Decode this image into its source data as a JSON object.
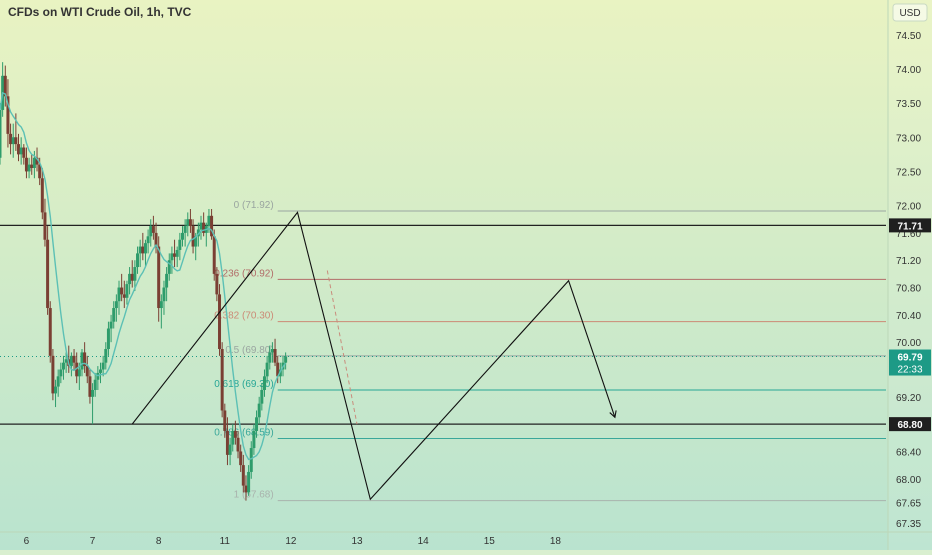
{
  "header": {
    "title": "CFDs on WTI Crude Oil, 1h, TVC",
    "currency": "USD"
  },
  "colors": {
    "bg_top": "#e9f3c2",
    "bg_bottom": "#b9e3cf",
    "up": "#2e9c6b",
    "down": "#7a3f33",
    "ma": "#5cc0b5",
    "fib_zero": "#9aa5a0",
    "fib_0236": "#b26c68",
    "fib_0382": "#cc8a76",
    "fib_0618": "#27a696",
    "fib_0786": "#3aa79a",
    "fib_1": "#a9b3ad",
    "hline": "#222222",
    "price_tag_bg": "#1d9a86",
    "axis_text": "#333333"
  },
  "chart_data": {
    "type": "candlestick",
    "title": "CFDs on WTI Crude Oil, 1h, TVC",
    "ylim": [
      67.25,
      74.6
    ],
    "xlim": [
      5.6,
      19.0
    ],
    "y_ticks": [
      "74.50",
      "74.00",
      "73.50",
      "73.00",
      "72.50",
      "72.00",
      "71.60",
      "71.20",
      "70.80",
      "70.40",
      "70.00",
      "69.20",
      "68.40",
      "68.00",
      "67.65",
      "67.35"
    ],
    "x_ticks": [
      {
        "label": "6",
        "x": 6
      },
      {
        "label": "7",
        "x": 7
      },
      {
        "label": "8",
        "x": 8
      },
      {
        "label": "11",
        "x": 9
      },
      {
        "label": "12",
        "x": 10
      },
      {
        "label": "13",
        "x": 11
      },
      {
        "label": "14",
        "x": 12
      },
      {
        "label": "15",
        "x": 13
      },
      {
        "label": "18",
        "x": 14
      }
    ],
    "last_price": {
      "value": 69.79,
      "label": "69.79",
      "countdown": "22:33"
    },
    "horizontal_levels": [
      {
        "value": 71.71,
        "label": "71.71"
      },
      {
        "value": 68.8,
        "label": "68.80"
      }
    ],
    "fib_levels": [
      {
        "ratio": "0",
        "value": 71.92,
        "label": "0 (71.92)",
        "color_key": "fib_zero"
      },
      {
        "ratio": "0.236",
        "value": 70.92,
        "label": "0.236 (70.92)",
        "color_key": "fib_0236"
      },
      {
        "ratio": "0.382",
        "value": 70.3,
        "label": "0.382 (70.30)",
        "color_key": "fib_0382"
      },
      {
        "ratio": "0.5",
        "value": 69.8,
        "label": "0.5 (69.80)",
        "color_key": "fib_zero"
      },
      {
        "ratio": "0.618",
        "value": 69.3,
        "label": "0.618 (69.30)",
        "color_key": "fib_0618"
      },
      {
        "ratio": "0.786",
        "value": 68.59,
        "label": "0.786 (68.59)",
        "color_key": "fib_0786"
      },
      {
        "ratio": "1",
        "value": 67.68,
        "label": "1 (67.68)",
        "color_key": "fib_1"
      }
    ],
    "fib_range_x": [
      9.8,
      12.6
    ],
    "path": [
      [
        7.6,
        68.8
      ],
      [
        10.1,
        71.9
      ],
      [
        11.2,
        67.7
      ],
      [
        14.2,
        70.9
      ],
      [
        14.9,
        68.9
      ]
    ],
    "dashed_path": [
      [
        10.55,
        71.05
      ],
      [
        11.0,
        68.8
      ]
    ],
    "candles": [
      [
        5.6,
        72.7,
        73.5,
        72.6,
        73.4
      ],
      [
        5.64,
        73.4,
        74.1,
        73.3,
        73.9
      ],
      [
        5.68,
        73.9,
        74.05,
        73.45,
        73.6
      ],
      [
        5.72,
        73.6,
        73.85,
        72.85,
        73.05
      ],
      [
        5.76,
        73.05,
        73.2,
        72.75,
        72.9
      ],
      [
        5.8,
        72.9,
        73.2,
        72.7,
        73.0
      ],
      [
        5.84,
        73.0,
        73.35,
        72.8,
        72.9
      ],
      [
        5.88,
        72.9,
        73.05,
        72.65,
        72.75
      ],
      [
        5.92,
        72.75,
        73.0,
        72.6,
        72.85
      ],
      [
        5.96,
        72.85,
        72.9,
        72.6,
        72.7
      ],
      [
        6.0,
        72.7,
        72.85,
        72.4,
        72.5
      ],
      [
        6.04,
        72.5,
        72.7,
        72.4,
        72.6
      ],
      [
        6.08,
        72.6,
        72.75,
        72.45,
        72.55
      ],
      [
        6.12,
        72.55,
        72.8,
        72.4,
        72.7
      ],
      [
        6.16,
        72.7,
        72.85,
        72.5,
        72.6
      ],
      [
        6.2,
        72.6,
        72.7,
        72.3,
        72.4
      ],
      [
        6.24,
        72.4,
        72.55,
        71.8,
        71.9
      ],
      [
        6.28,
        71.9,
        72.1,
        71.4,
        71.5
      ],
      [
        6.32,
        71.5,
        71.7,
        70.4,
        70.5
      ],
      [
        6.36,
        70.5,
        70.6,
        69.7,
        69.8
      ],
      [
        6.4,
        69.8,
        69.9,
        69.15,
        69.25
      ],
      [
        6.44,
        69.25,
        69.45,
        69.05,
        69.35
      ],
      [
        6.48,
        69.35,
        69.6,
        69.2,
        69.5
      ],
      [
        6.52,
        69.5,
        69.7,
        69.4,
        69.6
      ],
      [
        6.56,
        69.6,
        69.8,
        69.45,
        69.7
      ],
      [
        6.6,
        69.7,
        69.85,
        69.55,
        69.75
      ],
      [
        6.64,
        69.75,
        69.95,
        69.55,
        69.65
      ],
      [
        6.68,
        69.65,
        69.85,
        69.5,
        69.8
      ],
      [
        6.72,
        69.8,
        69.9,
        69.6,
        69.7
      ],
      [
        6.76,
        69.7,
        69.85,
        69.4,
        69.5
      ],
      [
        6.8,
        69.5,
        69.7,
        69.3,
        69.6
      ],
      [
        6.84,
        69.6,
        69.9,
        69.5,
        69.85
      ],
      [
        6.88,
        69.85,
        70.0,
        69.55,
        69.65
      ],
      [
        6.92,
        69.65,
        69.8,
        69.4,
        69.5
      ],
      [
        6.96,
        69.5,
        69.6,
        69.1,
        69.2
      ],
      [
        7.0,
        69.2,
        69.4,
        68.8,
        69.3
      ],
      [
        7.04,
        69.3,
        69.55,
        69.2,
        69.45
      ],
      [
        7.08,
        69.45,
        69.65,
        69.3,
        69.55
      ],
      [
        7.12,
        69.55,
        69.7,
        69.4,
        69.6
      ],
      [
        7.16,
        69.6,
        69.8,
        69.5,
        69.7
      ],
      [
        7.2,
        69.7,
        70.0,
        69.6,
        69.9
      ],
      [
        7.24,
        69.9,
        70.3,
        69.8,
        70.2
      ],
      [
        7.28,
        70.2,
        70.4,
        70.0,
        70.3
      ],
      [
        7.32,
        70.3,
        70.6,
        70.2,
        70.5
      ],
      [
        7.36,
        70.5,
        70.7,
        70.3,
        70.6
      ],
      [
        7.4,
        70.6,
        70.9,
        70.4,
        70.8
      ],
      [
        7.44,
        70.8,
        71.0,
        70.6,
        70.7
      ],
      [
        7.48,
        70.7,
        70.9,
        70.5,
        70.65
      ],
      [
        7.52,
        70.65,
        70.9,
        70.55,
        70.85
      ],
      [
        7.56,
        70.85,
        71.1,
        70.7,
        71.0
      ],
      [
        7.6,
        71.0,
        71.2,
        70.8,
        70.9
      ],
      [
        7.64,
        70.9,
        71.2,
        70.75,
        71.1
      ],
      [
        7.68,
        71.1,
        71.4,
        71.0,
        71.3
      ],
      [
        7.72,
        71.3,
        71.5,
        71.1,
        71.4
      ],
      [
        7.76,
        71.4,
        71.6,
        71.2,
        71.3
      ],
      [
        7.8,
        71.3,
        71.5,
        71.1,
        71.45
      ],
      [
        7.84,
        71.45,
        71.65,
        71.3,
        71.55
      ],
      [
        7.88,
        71.55,
        71.8,
        71.4,
        71.7
      ],
      [
        7.92,
        71.7,
        71.85,
        71.5,
        71.6
      ],
      [
        7.96,
        71.6,
        71.75,
        71.3,
        71.4
      ],
      [
        8.0,
        71.4,
        71.55,
        70.3,
        70.5
      ],
      [
        8.04,
        70.5,
        70.7,
        70.2,
        70.6
      ],
      [
        8.08,
        70.6,
        70.9,
        70.4,
        70.8
      ],
      [
        8.12,
        70.8,
        71.1,
        70.6,
        71.0
      ],
      [
        8.16,
        71.0,
        71.3,
        70.9,
        71.2
      ],
      [
        8.2,
        71.2,
        71.4,
        71.0,
        71.3
      ],
      [
        8.24,
        71.3,
        71.5,
        71.1,
        71.25
      ],
      [
        8.28,
        71.25,
        71.4,
        71.1,
        71.35
      ],
      [
        8.32,
        71.35,
        71.6,
        71.2,
        71.5
      ],
      [
        8.36,
        71.5,
        71.7,
        71.4,
        71.6
      ],
      [
        8.4,
        71.6,
        71.8,
        71.4,
        71.7
      ],
      [
        8.44,
        71.7,
        71.9,
        71.55,
        71.8
      ],
      [
        8.48,
        71.8,
        71.95,
        71.6,
        71.7
      ],
      [
        8.52,
        71.7,
        71.8,
        71.3,
        71.4
      ],
      [
        8.56,
        71.4,
        71.6,
        71.2,
        71.55
      ],
      [
        8.6,
        71.55,
        71.75,
        71.4,
        71.65
      ],
      [
        8.64,
        71.65,
        71.85,
        71.5,
        71.75
      ],
      [
        8.68,
        71.75,
        71.9,
        71.55,
        71.6
      ],
      [
        8.72,
        71.6,
        71.75,
        71.4,
        71.7
      ],
      [
        8.76,
        71.7,
        71.95,
        71.6,
        71.85
      ],
      [
        8.8,
        71.85,
        71.95,
        71.5,
        71.55
      ],
      [
        8.84,
        71.55,
        71.65,
        70.9,
        71.0
      ],
      [
        8.88,
        71.0,
        71.1,
        70.6,
        70.7
      ],
      [
        8.92,
        70.7,
        70.85,
        69.8,
        69.9
      ],
      [
        8.96,
        69.9,
        70.0,
        68.9,
        69.0
      ],
      [
        9.0,
        69.0,
        69.1,
        68.6,
        68.7
      ],
      [
        9.04,
        68.7,
        68.9,
        68.2,
        68.35
      ],
      [
        9.08,
        68.35,
        68.6,
        68.2,
        68.5
      ],
      [
        9.12,
        68.5,
        68.8,
        68.4,
        68.7
      ],
      [
        9.16,
        68.7,
        68.85,
        68.5,
        68.6
      ],
      [
        9.2,
        68.6,
        68.7,
        68.3,
        68.4
      ],
      [
        9.24,
        68.4,
        68.5,
        68.1,
        68.2
      ],
      [
        9.28,
        68.2,
        68.35,
        67.8,
        67.9
      ],
      [
        9.32,
        67.9,
        68.05,
        67.68,
        67.8
      ],
      [
        9.36,
        67.8,
        68.2,
        67.75,
        68.1
      ],
      [
        9.4,
        68.1,
        68.55,
        68.0,
        68.45
      ],
      [
        9.44,
        68.45,
        68.8,
        68.35,
        68.7
      ],
      [
        9.48,
        68.7,
        69.0,
        68.6,
        68.9
      ],
      [
        9.52,
        68.9,
        69.2,
        68.8,
        69.1
      ],
      [
        9.56,
        69.1,
        69.4,
        69.0,
        69.3
      ],
      [
        9.6,
        69.3,
        69.6,
        69.2,
        69.5
      ],
      [
        9.64,
        69.5,
        69.8,
        69.4,
        69.7
      ],
      [
        9.68,
        69.7,
        69.95,
        69.6,
        69.85
      ],
      [
        9.72,
        69.85,
        70.0,
        69.7,
        69.9
      ],
      [
        9.76,
        69.9,
        70.05,
        69.65,
        69.7
      ],
      [
        9.8,
        69.7,
        69.8,
        69.4,
        69.5
      ],
      [
        9.84,
        69.5,
        69.7,
        69.4,
        69.6
      ],
      [
        9.88,
        69.6,
        69.8,
        69.5,
        69.7
      ],
      [
        9.92,
        69.7,
        69.85,
        69.6,
        69.79
      ]
    ]
  }
}
